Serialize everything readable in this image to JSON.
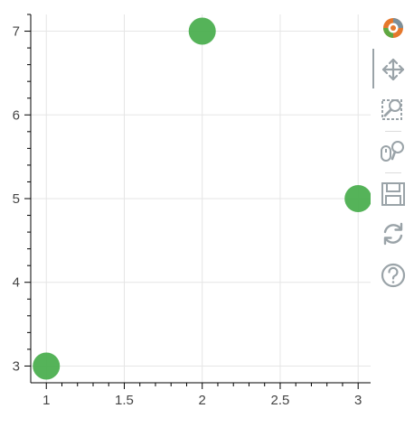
{
  "chart_data": {
    "type": "scatter",
    "x": [
      1,
      2,
      3
    ],
    "y": [
      3,
      7,
      5
    ],
    "xlim": [
      0.9,
      3.08
    ],
    "ylim": [
      2.8,
      7.2
    ],
    "xticks": [
      1,
      1.5,
      2,
      2.5,
      3
    ],
    "xtick_labels": [
      "1",
      "1.5",
      "2",
      "2.5",
      "3"
    ],
    "yticks": [
      3,
      4,
      5,
      6,
      7
    ],
    "ytick_labels": [
      "3",
      "4",
      "5",
      "6",
      "7"
    ],
    "x_minor_step": 0.1,
    "y_minor_step": 0.2,
    "grid": true,
    "marker": "circle",
    "marker_color": "#4caf50",
    "title": "",
    "xlabel": "",
    "ylabel": ""
  },
  "toolbar": {
    "icons": [
      "bokeh-logo-icon",
      "pan-icon",
      "box-zoom-icon",
      "wheel-zoom-icon",
      "save-icon",
      "reset-icon",
      "help-icon"
    ],
    "icon_color": "#9aa3a8"
  }
}
